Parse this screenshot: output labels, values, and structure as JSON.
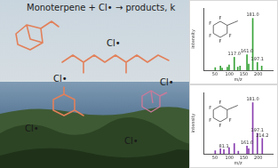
{
  "title": "Monoterpene + Cl• → products, k",
  "radical_labels": [
    "Cl•",
    "Cl•",
    "Cl•",
    "Cl•",
    "Cl•"
  ],
  "chart_data": [
    {
      "type": "bar",
      "color": "#3aa43a",
      "xlabel": "m/z",
      "ylabel": "intensity",
      "x": [
        51,
        69,
        75,
        93,
        99,
        117,
        129,
        137,
        161,
        167,
        181,
        197,
        212
      ],
      "values": [
        5,
        8,
        4,
        6,
        10,
        25,
        6,
        8,
        30,
        12,
        100,
        15,
        8
      ],
      "xlim": [
        40,
        220
      ],
      "xticks": [
        50,
        100,
        150,
        200
      ],
      "ylim": [
        0,
        120
      ],
      "grid": false,
      "tick_labels": "x",
      "annotations": [
        {
          "x": 117,
          "text": "117.0"
        },
        {
          "x": 161,
          "text": "161.0"
        },
        {
          "x": 181,
          "text": "181.0"
        },
        {
          "x": 197,
          "text": "197.1"
        }
      ],
      "structure_atoms": [
        "F",
        "F",
        "F",
        "F",
        "F"
      ]
    },
    {
      "type": "bar",
      "color": "#8a3fb0",
      "xlabel": "m/z",
      "ylabel": "intensity",
      "x": [
        51,
        69,
        81,
        99,
        117,
        131,
        161,
        167,
        181,
        197,
        214
      ],
      "values": [
        6,
        10,
        8,
        12,
        20,
        5,
        15,
        10,
        100,
        40,
        30
      ],
      "xlim": [
        40,
        220
      ],
      "xticks": [
        50,
        100,
        150,
        200
      ],
      "ylim": [
        0,
        120
      ],
      "grid": false,
      "tick_labels": "x",
      "annotations": [
        {
          "x": 81,
          "text": "81.1"
        },
        {
          "x": 161,
          "text": "161.0"
        },
        {
          "x": 181,
          "text": "181.0"
        },
        {
          "x": 197,
          "text": "197.1"
        },
        {
          "x": 214,
          "text": "214.2"
        }
      ],
      "structure_atoms": [
        "F",
        "F",
        "F",
        "F",
        "F"
      ]
    }
  ]
}
